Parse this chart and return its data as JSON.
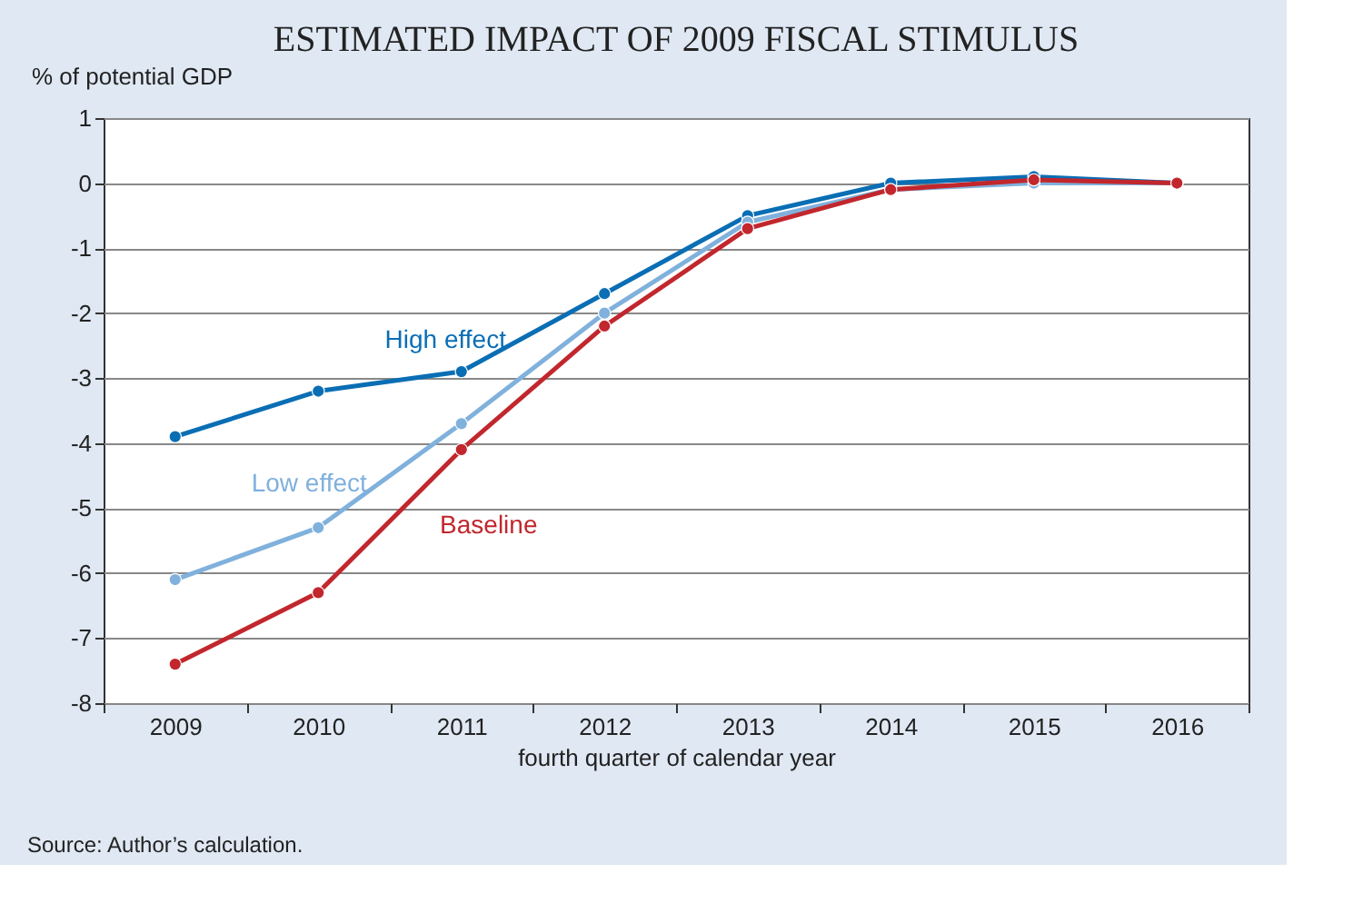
{
  "chart_data": {
    "type": "line",
    "title": "ESTIMATED IMPACT OF 2009 FISCAL STIMULUS",
    "ylabel": "% of potential GDP",
    "xlabel": "fourth quarter of calendar year",
    "categories": [
      "2009",
      "2010",
      "2011",
      "2012",
      "2013",
      "2014",
      "2015",
      "2016"
    ],
    "series": [
      {
        "name": "High effect",
        "color": "#0a6eb4",
        "values": [
          -3.9,
          -3.2,
          -2.9,
          -1.7,
          -0.5,
          0.0,
          0.1,
          0.0
        ]
      },
      {
        "name": "Low effect",
        "color": "#80b1dc",
        "values": [
          -6.1,
          -5.3,
          -3.7,
          -2.0,
          -0.6,
          -0.1,
          0.0,
          0.0
        ]
      },
      {
        "name": "Baseline",
        "color": "#c1272d",
        "values": [
          -7.4,
          -6.3,
          -4.1,
          -2.2,
          -0.7,
          -0.1,
          0.05,
          0.0
        ]
      }
    ],
    "ylim": [
      -8,
      1
    ],
    "yticks": [
      -8,
      -7,
      -6,
      -5,
      -4,
      -3,
      -2,
      -1,
      0,
      1
    ],
    "grid": "y",
    "marker": "circle",
    "line_style": "solid",
    "legend": false,
    "annotations": [
      "Source: Author’s calculation."
    ]
  }
}
